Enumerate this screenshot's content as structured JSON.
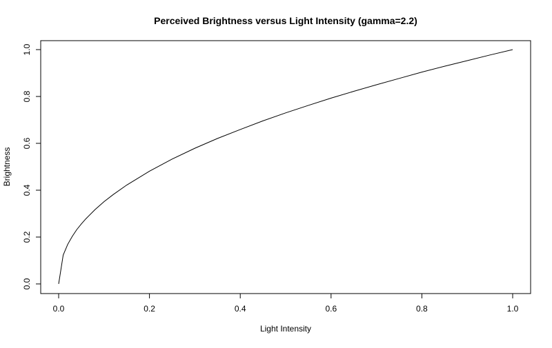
{
  "chart_data": {
    "type": "line",
    "title": "Perceived Brightness versus Light Intensity (gamma=2.2)",
    "xlabel": "Light Intensity",
    "ylabel": "Brightness",
    "xlim": [
      0,
      1
    ],
    "ylim": [
      0,
      1
    ],
    "x_ticks": [
      0.0,
      0.2,
      0.4,
      0.6,
      0.8,
      1.0
    ],
    "x_tick_labels": [
      "0.0",
      "0.2",
      "0.4",
      "0.6",
      "0.8",
      "1.0"
    ],
    "y_ticks": [
      0.0,
      0.2,
      0.4,
      0.6,
      0.8,
      1.0
    ],
    "y_tick_labels": [
      "0.0",
      "0.2",
      "0.4",
      "0.6",
      "0.8",
      "1.0"
    ],
    "grid": false,
    "line_color": "#000000",
    "series": [
      {
        "x": [
          0.0,
          0.01,
          0.02,
          0.03,
          0.04,
          0.05,
          0.06,
          0.08,
          0.1,
          0.12,
          0.15,
          0.2,
          0.25,
          0.3,
          0.35,
          0.4,
          0.45,
          0.5,
          0.55,
          0.6,
          0.65,
          0.7,
          0.75,
          0.8,
          0.85,
          0.9,
          0.95,
          1.0
        ],
        "y": [
          0.0,
          0.123,
          0.169,
          0.203,
          0.232,
          0.256,
          0.278,
          0.317,
          0.351,
          0.381,
          0.422,
          0.481,
          0.533,
          0.579,
          0.621,
          0.659,
          0.696,
          0.73,
          0.762,
          0.793,
          0.822,
          0.85,
          0.877,
          0.904,
          0.929,
          0.953,
          0.977,
          1.0
        ]
      }
    ]
  }
}
